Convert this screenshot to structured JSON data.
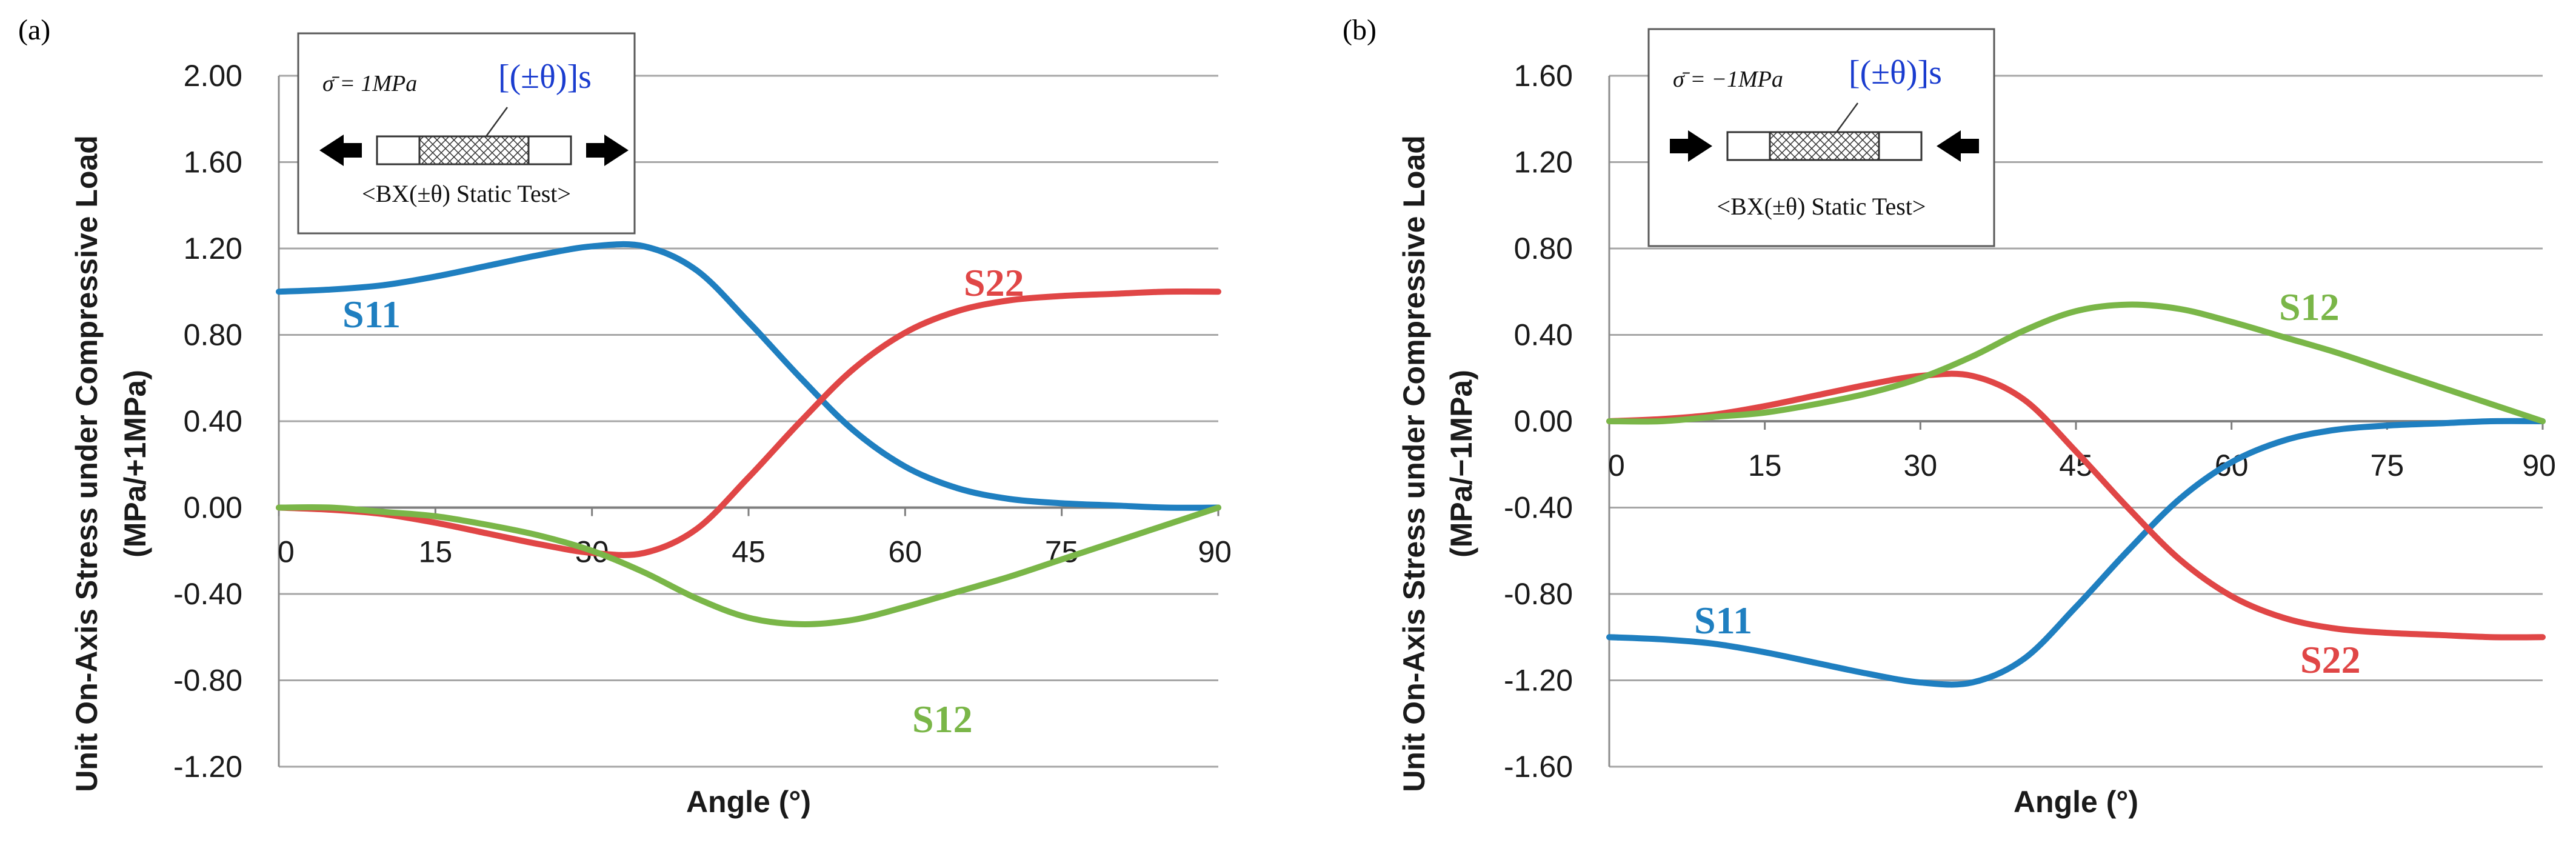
{
  "chart_data": [
    {
      "panel": "(a)",
      "type": "line",
      "xlabel": "Angle (°)",
      "ylabel_line1": "Unit On-Axis Stress under Compressive Load",
      "ylabel_line2": "(MPa/+1MPa)",
      "xlim": [
        0,
        90
      ],
      "ylim": [
        -1.2,
        2.0
      ],
      "xticks": [
        0,
        15,
        30,
        45,
        60,
        75,
        90
      ],
      "xtick_labels": [
        "0",
        "15",
        "30",
        "45",
        "60",
        "75",
        "90"
      ],
      "yticks": [
        2.0,
        1.6,
        1.2,
        0.8,
        0.4,
        0.0,
        -0.4,
        -0.8,
        -1.2
      ],
      "ytick_labels": [
        "2.00",
        "1.60",
        "1.20",
        "0.80",
        "0.40",
        "0.00",
        "-0.40",
        "-0.80",
        "-1.20"
      ],
      "grid": "horizontal",
      "x": [
        0,
        5,
        10,
        15,
        20,
        25,
        30,
        35,
        40,
        45,
        50,
        55,
        60,
        65,
        70,
        75,
        80,
        85,
        90
      ],
      "series": [
        {
          "name": "S11",
          "label": "S11",
          "color": "#1f7fc0",
          "values": [
            1.0,
            1.01,
            1.03,
            1.07,
            1.12,
            1.17,
            1.21,
            1.21,
            1.1,
            0.86,
            0.6,
            0.36,
            0.19,
            0.09,
            0.04,
            0.02,
            0.01,
            0.0,
            0.0
          ]
        },
        {
          "name": "S22",
          "label": "S22",
          "color": "#e04646",
          "values": [
            0.0,
            -0.01,
            -0.03,
            -0.07,
            -0.12,
            -0.17,
            -0.21,
            -0.21,
            -0.1,
            0.14,
            0.4,
            0.64,
            0.81,
            0.91,
            0.96,
            0.98,
            0.99,
            1.0,
            1.0
          ]
        },
        {
          "name": "S12",
          "label": "S12",
          "color": "#7ab648",
          "values": [
            0.0,
            0.0,
            -0.02,
            -0.04,
            -0.08,
            -0.13,
            -0.2,
            -0.3,
            -0.42,
            -0.51,
            -0.54,
            -0.52,
            -0.46,
            -0.39,
            -0.32,
            -0.24,
            -0.16,
            -0.08,
            0.0
          ]
        }
      ],
      "inset": {
        "stress_label": "σ̄ = 1MPa",
        "layup": "[(±θ)]s",
        "test_label": "<BX(±θ) Static Test>",
        "load": "tension"
      }
    },
    {
      "panel": "(b)",
      "type": "line",
      "xlabel": "Angle (°)",
      "ylabel_line1": "Unit On-Axis Stress under Compressive Load",
      "ylabel_line2": "(MPa/−1MPa)",
      "xlim": [
        0,
        90
      ],
      "ylim": [
        -1.6,
        1.6
      ],
      "xticks": [
        0,
        15,
        30,
        45,
        60,
        75,
        90
      ],
      "xtick_labels": [
        "0",
        "15",
        "30",
        "45",
        "60",
        "75",
        "90"
      ],
      "yticks": [
        1.6,
        1.2,
        0.8,
        0.4,
        0.0,
        -0.4,
        -0.8,
        -1.2,
        -1.6
      ],
      "ytick_labels": [
        "1.60",
        "1.20",
        "0.80",
        "0.40",
        "0.00",
        "-0.40",
        "-0.80",
        "-1.20",
        "-1.60"
      ],
      "grid": "horizontal",
      "x": [
        0,
        5,
        10,
        15,
        20,
        25,
        30,
        35,
        40,
        45,
        50,
        55,
        60,
        65,
        70,
        75,
        80,
        85,
        90
      ],
      "series": [
        {
          "name": "S11",
          "label": "S11",
          "color": "#1f7fc0",
          "values": [
            -1.0,
            -1.01,
            -1.03,
            -1.07,
            -1.12,
            -1.17,
            -1.21,
            -1.21,
            -1.1,
            -0.86,
            -0.6,
            -0.36,
            -0.19,
            -0.09,
            -0.04,
            -0.02,
            -0.01,
            0.0,
            0.0
          ]
        },
        {
          "name": "S22",
          "label": "S22",
          "color": "#e04646",
          "values": [
            0.0,
            0.01,
            0.03,
            0.07,
            0.12,
            0.17,
            0.21,
            0.21,
            0.1,
            -0.14,
            -0.4,
            -0.64,
            -0.81,
            -0.91,
            -0.96,
            -0.98,
            -0.99,
            -1.0,
            -1.0
          ]
        },
        {
          "name": "S12",
          "label": "S12",
          "color": "#7ab648",
          "values": [
            0.0,
            0.0,
            0.02,
            0.04,
            0.08,
            0.13,
            0.2,
            0.3,
            0.42,
            0.51,
            0.54,
            0.52,
            0.46,
            0.39,
            0.32,
            0.24,
            0.16,
            0.08,
            0.0
          ]
        }
      ],
      "inset": {
        "stress_label": "σ̄ = −1MPa",
        "layup": "[(±θ)]s",
        "test_label": "<BX(±θ) Static Test>",
        "load": "compression"
      }
    }
  ]
}
